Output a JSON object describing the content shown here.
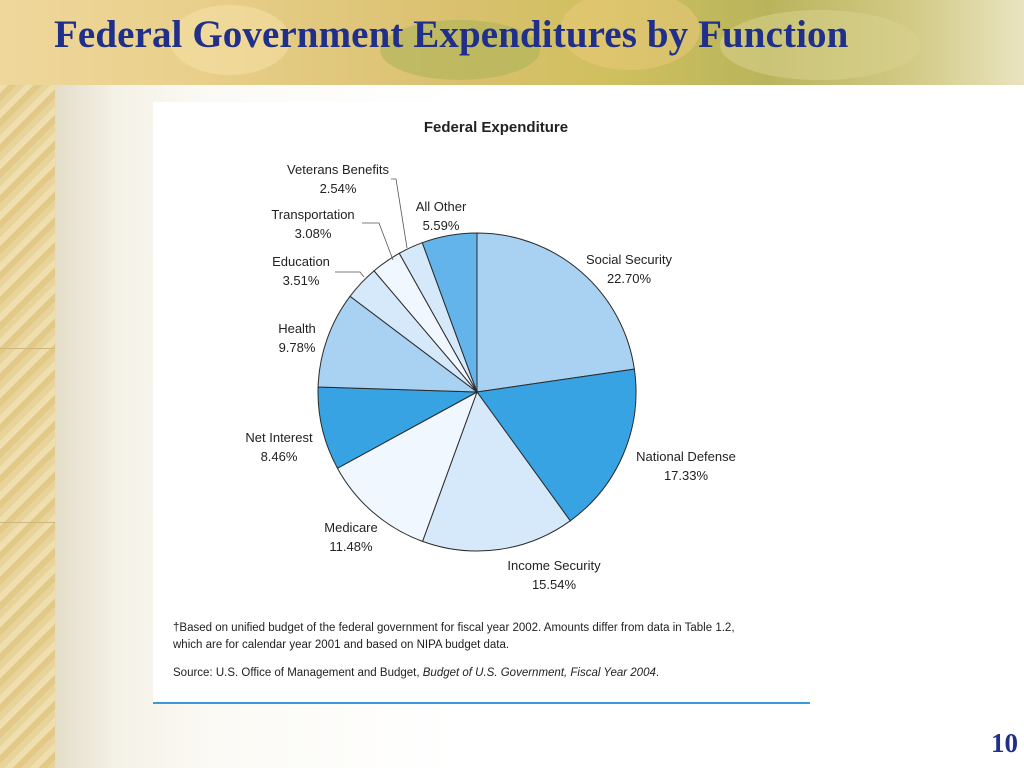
{
  "slide": {
    "title": "Federal Government Expenditures by Function",
    "number": "10"
  },
  "chart_data": {
    "type": "pie",
    "title": "Federal Expenditure",
    "slices": [
      {
        "label": "Social Security",
        "value": 22.7,
        "display": "22.70%",
        "color": "#a9d1f2"
      },
      {
        "label": "National Defense",
        "value": 17.33,
        "display": "17.33%",
        "color": "#37a3e2"
      },
      {
        "label": "Income Security",
        "value": 15.54,
        "display": "15.54%",
        "color": "#d5e9fa"
      },
      {
        "label": "Medicare",
        "value": 11.48,
        "display": "11.48%",
        "color": "#f1f7fe"
      },
      {
        "label": "Net Interest",
        "value": 8.46,
        "display": "8.46%",
        "color": "#37a3e2"
      },
      {
        "label": "Health",
        "value": 9.78,
        "display": "9.78%",
        "color": "#a9d1f2"
      },
      {
        "label": "Education",
        "value": 3.51,
        "display": "3.51%",
        "color": "#d5e9fa"
      },
      {
        "label": "Transportation",
        "value": 3.08,
        "display": "3.08%",
        "color": "#f1f7fe"
      },
      {
        "label": "Veterans Benefits",
        "value": 2.54,
        "display": "2.54%",
        "color": "#d5e9fa"
      },
      {
        "label": "All Other",
        "value": 5.59,
        "display": "5.59%",
        "color": "#62b4ea"
      }
    ]
  },
  "footnotes": {
    "budget_note_line1": "†Based on unified budget of the federal government for fiscal year 2002. Amounts differ from data in Table 1.2,",
    "budget_note_line2": "which are for calendar year 2001 and based on NIPA budget data.",
    "source_prefix": "Source: U.S. Office of Management and Budget, ",
    "source_title": "Budget of U.S. Government, Fiscal Year 2004",
    "source_suffix": "."
  }
}
